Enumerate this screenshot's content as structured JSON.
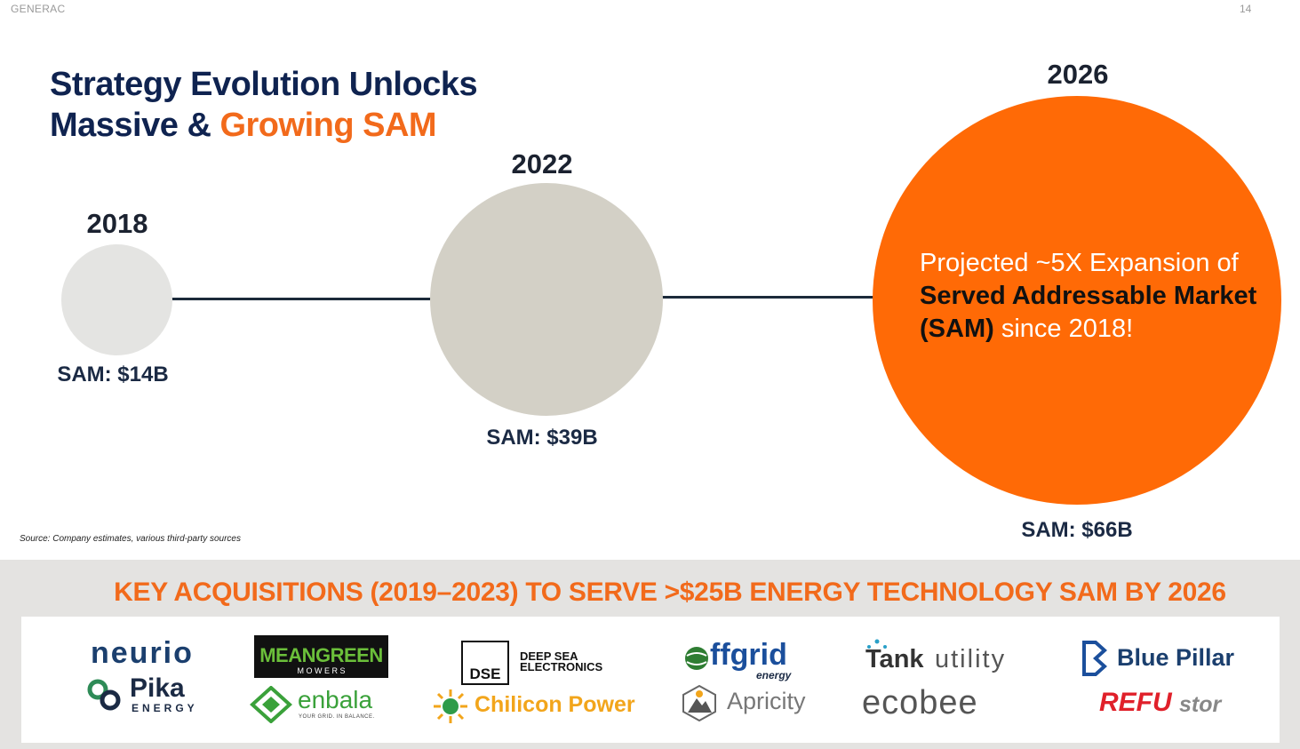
{
  "header": {
    "brand": "GENERAC",
    "page_number": "14"
  },
  "title": {
    "line1": "Strategy Evolution Unlocks",
    "line2_prefix": "Massive & ",
    "line2_highlight": "Growing SAM"
  },
  "milestones": [
    {
      "year": "2018",
      "sam": "SAM: $14B",
      "value_billion": 14
    },
    {
      "year": "2022",
      "sam": "SAM: $39B",
      "value_billion": 39
    },
    {
      "year": "2026",
      "sam": "SAM: $66B",
      "value_billion": 66
    }
  ],
  "projection": {
    "prefix": "Projected ~5X Expansion of ",
    "bold": "Served Addressable Market (SAM)",
    "suffix": " since 2018!"
  },
  "source": "Source: Company estimates, various third-party sources",
  "acquisitions": {
    "heading": "KEY ACQUISITIONS (2019–2023) TO SERVE >$25B ENERGY TECHNOLOGY SAM BY 2026",
    "logos": {
      "neurio": "neurio",
      "pika": "Pika",
      "pika_sub": "ENERGY",
      "meangreen": "MEANGREEN",
      "meangreen_sub": "M O W E R S",
      "enbala": "enbala",
      "enbala_sub": "YOUR GRID. IN BALANCE.",
      "dse": "DSE",
      "deepsea1": "DEEP SEA",
      "deepsea2": "ELECTRONICS",
      "chilicon": "Chilicon Power",
      "offgrid": "ffgrid",
      "offgrid_sub": "energy",
      "apricity": "Apricity",
      "tank_bold": "Tank",
      "tank_light": "utility",
      "ecobee": "ecobee",
      "bluepillar": "Blue Pillar",
      "refu": "REFU",
      "refu_sub": "stor"
    }
  },
  "colors": {
    "navy": "#0f2350",
    "orange": "#f26a1b",
    "gray_2018": "#e4e4e2",
    "beige_2022": "#d3d0c6",
    "orange_2026": "#ff6a06"
  }
}
